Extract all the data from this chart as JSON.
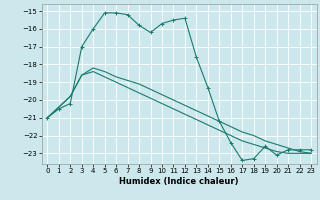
{
  "title": "",
  "xlabel": "Humidex (Indice chaleur)",
  "bg_color": "#cce8ec",
  "line_color": "#1a7a6e",
  "grid_color": "#ffffff",
  "xlim": [
    -0.5,
    23.5
  ],
  "ylim": [
    -23.6,
    -14.6
  ],
  "yticks": [
    -15,
    -16,
    -17,
    -18,
    -19,
    -20,
    -21,
    -22,
    -23
  ],
  "xticks": [
    0,
    1,
    2,
    3,
    4,
    5,
    6,
    7,
    8,
    9,
    10,
    11,
    12,
    13,
    14,
    15,
    16,
    17,
    18,
    19,
    20,
    21,
    22,
    23
  ],
  "line1_x": [
    0,
    1,
    2,
    3,
    4,
    5,
    6,
    7,
    8,
    9,
    10,
    11,
    12,
    13,
    14,
    15,
    16,
    17,
    18,
    19,
    20,
    21,
    22,
    23
  ],
  "line1_y": [
    -21.0,
    -20.5,
    -20.2,
    -17.0,
    -16.0,
    -15.1,
    -15.1,
    -15.2,
    -15.8,
    -16.2,
    -15.7,
    -15.5,
    -15.4,
    -17.6,
    -19.3,
    -21.2,
    -22.4,
    -23.4,
    -23.3,
    -22.6,
    -23.1,
    -22.8,
    -22.8,
    -22.8
  ],
  "line2_x": [
    0,
    2,
    3,
    4,
    5,
    6,
    7,
    8,
    9,
    10,
    11,
    12,
    13,
    14,
    15,
    16,
    17,
    18,
    19,
    20,
    21,
    22,
    23
  ],
  "line2_y": [
    -21.0,
    -19.8,
    -18.6,
    -18.2,
    -18.4,
    -18.7,
    -18.9,
    -19.1,
    -19.4,
    -19.7,
    -20.0,
    -20.3,
    -20.6,
    -20.9,
    -21.2,
    -21.5,
    -21.8,
    -22.0,
    -22.3,
    -22.5,
    -22.7,
    -22.9,
    -23.0
  ],
  "line3_x": [
    0,
    2,
    3,
    4,
    5,
    6,
    7,
    8,
    9,
    10,
    11,
    12,
    13,
    14,
    15,
    16,
    17,
    18,
    19,
    20,
    21,
    22,
    23
  ],
  "line3_y": [
    -21.0,
    -19.8,
    -18.6,
    -18.4,
    -18.7,
    -19.0,
    -19.3,
    -19.6,
    -19.9,
    -20.2,
    -20.5,
    -20.8,
    -21.1,
    -21.4,
    -21.7,
    -22.0,
    -22.3,
    -22.5,
    -22.7,
    -22.9,
    -23.0,
    -23.0,
    -23.0
  ]
}
